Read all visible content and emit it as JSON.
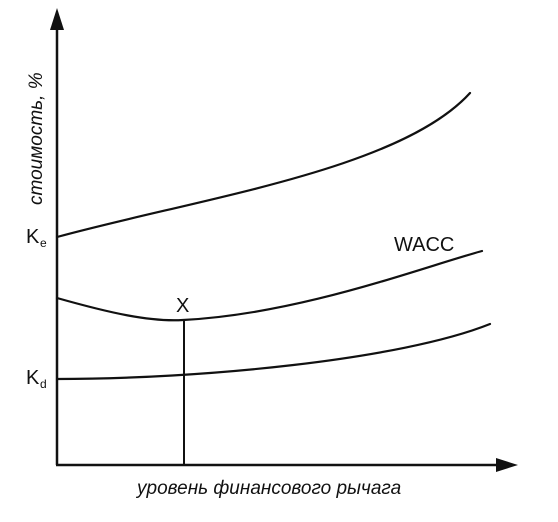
{
  "axes": {
    "y_label": "стоимость, %",
    "x_label": "уровень финансового рычага"
  },
  "y_marks": {
    "ke": {
      "letter": "K",
      "sub": "e"
    },
    "kd": {
      "letter": "K",
      "sub": "d"
    }
  },
  "curve_labels": {
    "wacc": "WACC",
    "optimum": "X"
  }
}
